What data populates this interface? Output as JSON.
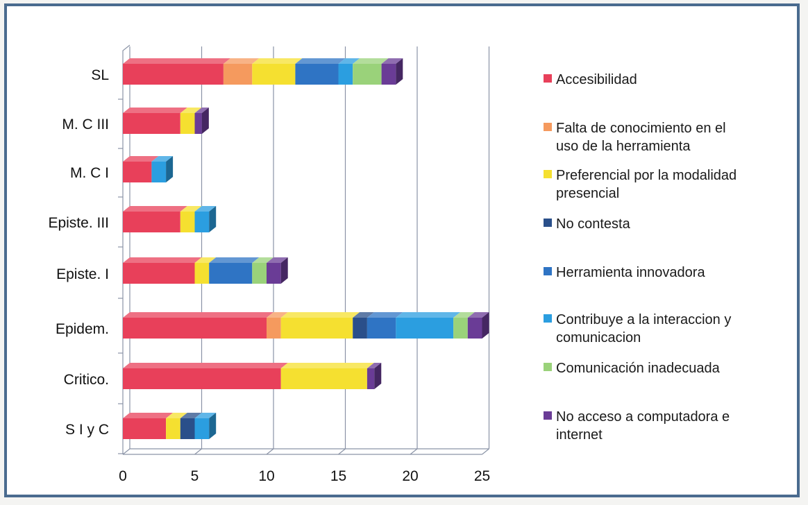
{
  "chart_data": {
    "type": "bar",
    "orientation": "horizontal",
    "stacked": true,
    "style_3d": true,
    "categories": [
      "SL",
      "M. C III",
      "M. C I",
      "Episte. III",
      "Episte. I",
      "Epidem.",
      "Critico.",
      "S I y C"
    ],
    "xlim": [
      0,
      25
    ],
    "x_ticks": [
      "0",
      "5",
      "10",
      "15",
      "20",
      "25"
    ],
    "grid": true,
    "legend_position": "right",
    "series": [
      {
        "name": "Accesibilidad",
        "color": "#e8405a",
        "values": [
          7,
          4,
          2,
          4,
          5,
          10,
          11,
          3
        ]
      },
      {
        "name": "Falta de conocimiento en el uso de la herramienta",
        "color": "#f59a5e",
        "values": [
          2,
          0,
          0,
          0,
          0,
          1,
          0,
          0
        ]
      },
      {
        "name": "Preferencial por la modalidad presencial",
        "color": "#f5e030",
        "values": [
          3,
          1,
          0,
          1,
          1,
          5,
          6,
          1
        ]
      },
      {
        "name": "No contesta",
        "color": "#2a4f8a",
        "values": [
          0,
          0,
          0,
          0,
          0,
          1,
          0,
          1
        ]
      },
      {
        "name": "Herramienta innovadora",
        "color": "#2f74c4",
        "values": [
          3,
          0,
          0,
          0,
          3,
          2,
          0,
          0
        ]
      },
      {
        "name": "Contribuye a la interaccion y comunicacion",
        "color": "#2b9ee0",
        "values": [
          1,
          0,
          1,
          1,
          0,
          4,
          0,
          1
        ]
      },
      {
        "name": "Comunicación inadecuada",
        "color": "#9ad27a",
        "values": [
          2,
          0,
          0,
          0,
          1,
          1,
          0,
          0
        ]
      },
      {
        "name": "No acceso a computadora e internet",
        "color": "#6a3c96",
        "values": [
          1,
          0.5,
          0,
          0,
          1,
          1,
          0.5,
          0
        ]
      }
    ]
  }
}
